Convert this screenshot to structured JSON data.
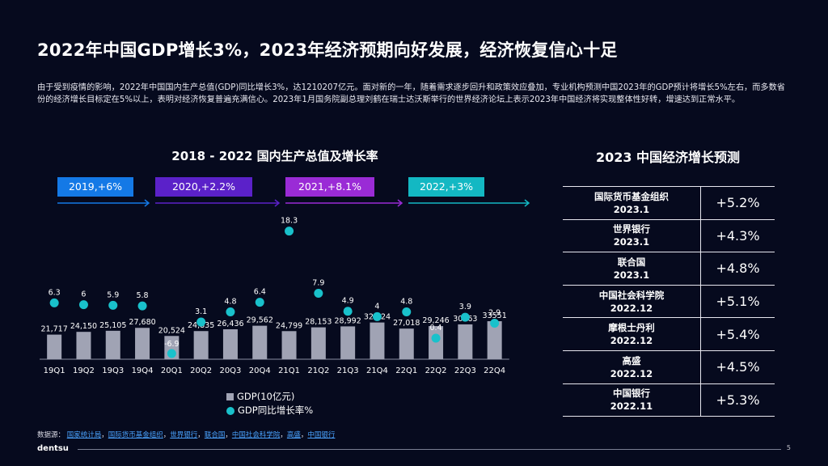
{
  "page": {
    "title": "2022年中国GDP增长3%，2023年经济预期向好发展，经济恢复信心十足",
    "intro": "由于受到疫情的影响，2022年中国国内生产总值(GDP)同比增长3%，达1210207亿元。面对新的一年，随着需求逐步回升和政策效应叠加，专业机构预测中国2023年的GDP预计将增长5%左右，而多数省份的经济增长目标定在5%以上，表明对经济恢复普遍充满信心。2023年1月国务院副总理刘鹤在瑞士达沃斯举行的世界经济论坛上表示2023年中国经济将实现整体性好转，增速达到正常水平。",
    "source_label": "数据源：",
    "sources": [
      "国家统计局",
      "国际货币基金组织",
      "世界银行",
      "联合国",
      "中国社会科学院",
      "高盛",
      "中国银行"
    ],
    "source_sep": "，",
    "brand": "dentsu",
    "page_number": "5"
  },
  "year_pills": [
    {
      "label": "2019,+6%",
      "color": "#1479e6"
    },
    {
      "label": "2020,+2.2%",
      "color": "#5b21c9"
    },
    {
      "label": "2021,+8.1%",
      "color": "#9a2bd6"
    },
    {
      "label": "2022,+3%",
      "color": "#13b8c3"
    }
  ],
  "chart_data": {
    "type": "bar",
    "title": "2018 - 2022 国内生产总值及增长率",
    "categories": [
      "19Q1",
      "19Q2",
      "19Q3",
      "19Q4",
      "20Q1",
      "20Q2",
      "20Q3",
      "20Q4",
      "21Q1",
      "21Q2",
      "21Q3",
      "21Q4",
      "22Q1",
      "22Q2",
      "22Q3",
      "22Q4"
    ],
    "series": [
      {
        "name": "GDP(10亿元)",
        "type": "bar",
        "color": "#a0a3b4",
        "values": [
          21717,
          24150,
          25105,
          27680,
          20524,
          24835,
          26436,
          29562,
          24799,
          28153,
          28992,
          32424,
          27018,
          29246,
          30763,
          33551
        ],
        "labels": [
          "21,717",
          "24,150",
          "25,105",
          "27,680",
          "20,524",
          "24,835",
          "26,436",
          "29,562",
          "24,799",
          "28,153",
          "28,992",
          "32,424",
          "27,018",
          "29,246",
          "30763",
          "33551"
        ]
      },
      {
        "name": "GDP同比增长率%",
        "type": "scatter",
        "color": "#19c1cb",
        "values": [
          6.3,
          6,
          5.9,
          5.8,
          -6.9,
          3.1,
          4.8,
          6.4,
          18.3,
          7.9,
          4.9,
          4,
          4.8,
          0.4,
          3.9,
          2.9
        ],
        "labels": [
          "6.3",
          "6",
          "5.9",
          "5.8",
          "-6.9",
          "3.1",
          "4.8",
          "6.4",
          "18.3",
          "7.9",
          "4.9",
          "4",
          "4.8",
          "0.4",
          "3.9",
          "2.9"
        ]
      }
    ],
    "xlabel": "",
    "ylabel": "",
    "legend": "bottom"
  },
  "forecast": {
    "title": "2023 中国经济增长预测",
    "rows": [
      {
        "org": "国际货币基金组织",
        "date": "2023.1",
        "value": "+5.2%"
      },
      {
        "org": "世界银行",
        "date": "2023.1",
        "value": "+4.3%"
      },
      {
        "org": "联合国",
        "date": "2023.1",
        "value": "+4.8%"
      },
      {
        "org": "中国社会科学院",
        "date": "2022.12",
        "value": "+5.1%"
      },
      {
        "org": "摩根士丹利",
        "date": "2022.12",
        "value": "+5.4%"
      },
      {
        "org": "高盛",
        "date": "2022.12",
        "value": "+4.5%"
      },
      {
        "org": "中国银行",
        "date": "2022.11",
        "value": "+5.3%"
      }
    ]
  }
}
